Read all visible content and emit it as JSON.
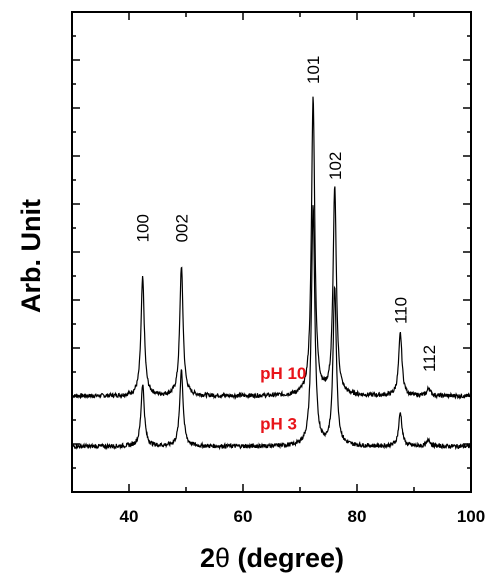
{
  "chart_data": {
    "type": "line",
    "xlabel_main": "2",
    "xlabel_theta": "θ",
    "xlabel_rest": " (degree)",
    "ylabel": "Arb. Unit",
    "xlim": [
      30,
      100
    ],
    "x_ticks": [
      "40",
      "60",
      "80",
      "100"
    ],
    "y_tick_labels": "none",
    "grid": false,
    "line_color": "#000000",
    "label_color": "#e8141a",
    "series": [
      {
        "name": "pH 10",
        "baseline": 0.2,
        "peaks": [
          {
            "x": 42.4,
            "height": 0.245
          },
          {
            "x": 49.2,
            "height": 0.27
          },
          {
            "x": 72.3,
            "height": 0.62
          },
          {
            "x": 76.1,
            "height": 0.43
          },
          {
            "x": 87.6,
            "height": 0.13
          },
          {
            "x": 92.6,
            "height": 0.016
          }
        ]
      },
      {
        "name": "pH 3",
        "baseline": 0.095,
        "peaks": [
          {
            "x": 42.4,
            "height": 0.13
          },
          {
            "x": 49.2,
            "height": 0.16
          },
          {
            "x": 72.3,
            "height": 0.5
          },
          {
            "x": 76.1,
            "height": 0.33
          },
          {
            "x": 87.6,
            "height": 0.07
          },
          {
            "x": 92.6,
            "height": 0.014
          }
        ]
      }
    ],
    "peak_labels": [
      {
        "text": "100",
        "x": 42.4,
        "y": 0.52
      },
      {
        "text": "002",
        "x": 49.2,
        "y": 0.52
      },
      {
        "text": "101",
        "x": 72.3,
        "y": 0.85
      },
      {
        "text": "102",
        "x": 76.1,
        "y": 0.65
      },
      {
        "text": "110",
        "x": 87.6,
        "y": 0.35
      },
      {
        "text": "112",
        "x": 92.6,
        "y": 0.25
      }
    ],
    "series_labels": [
      {
        "text": "pH 10",
        "x": 63,
        "y": 0.235
      },
      {
        "text": "pH 3",
        "x": 63,
        "y": 0.13
      }
    ]
  }
}
